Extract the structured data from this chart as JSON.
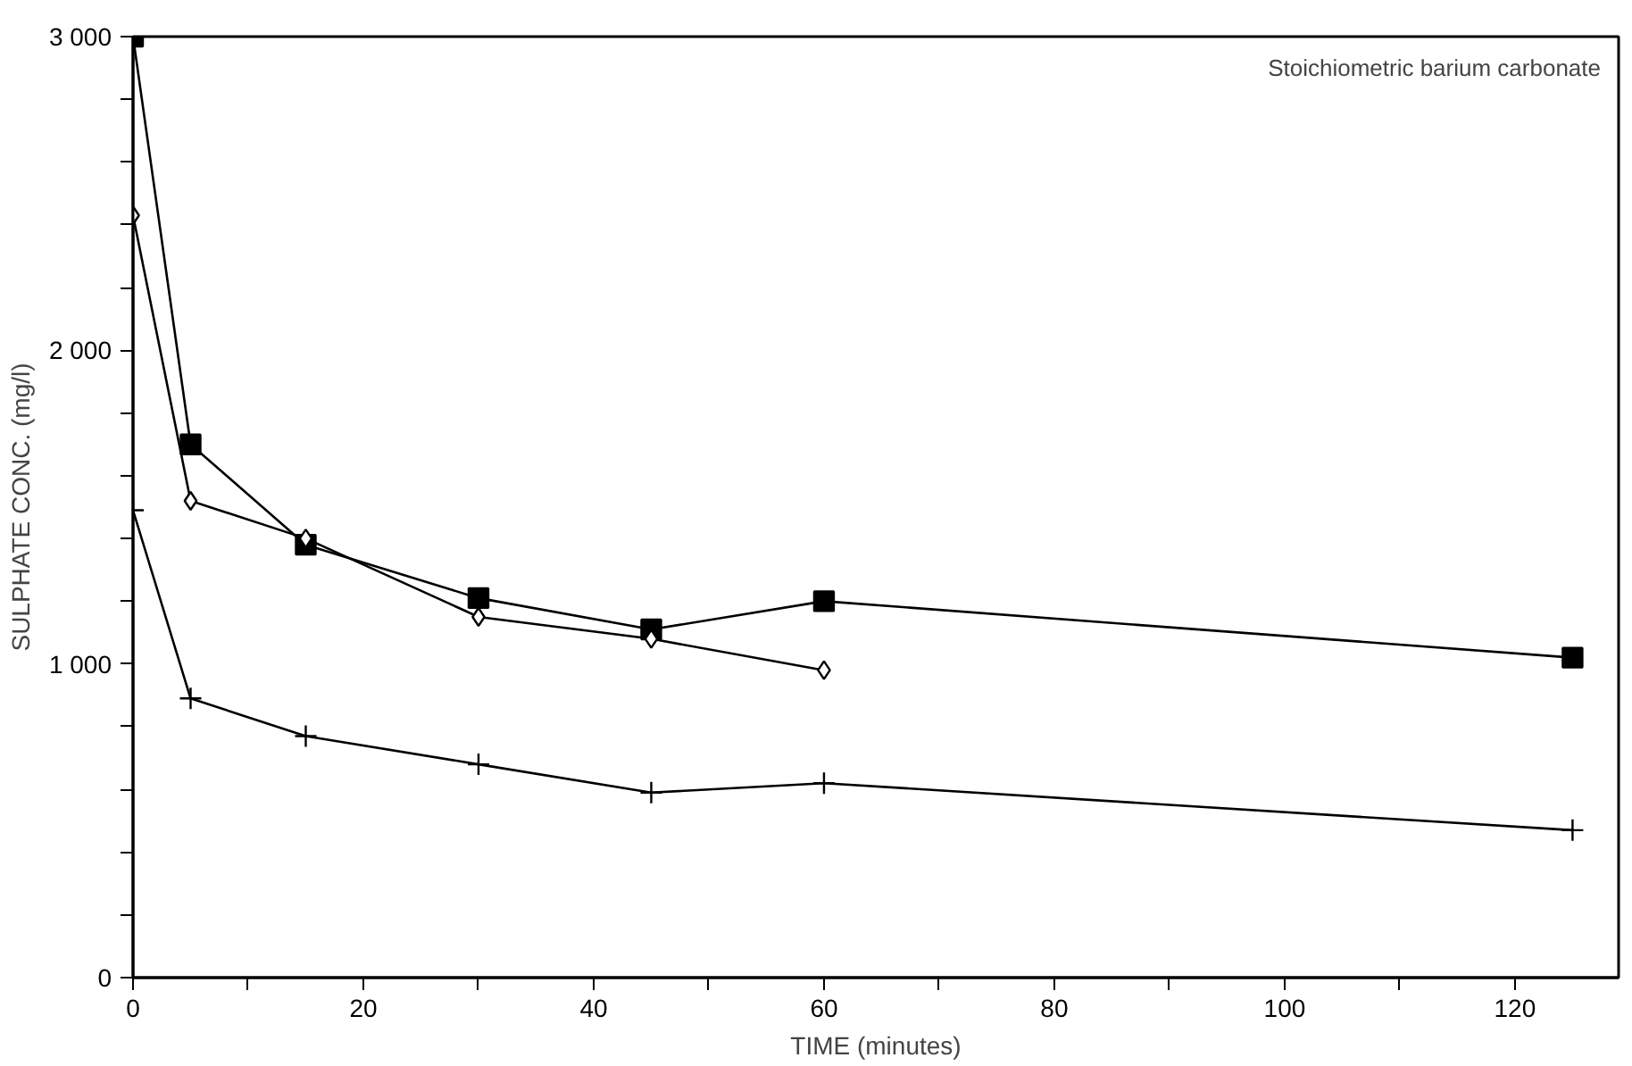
{
  "chart_data": {
    "type": "line",
    "annotations": [
      "Stoichiometric barium carbonate"
    ],
    "xlabel": "TIME (minutes)",
    "ylabel": "SULPHATE CONC. (mg/l)",
    "x": [
      0,
      5,
      15,
      30,
      45,
      60,
      125
    ],
    "series": [
      {
        "color": "#000000",
        "marker": "square",
        "values": [
          3000,
          1700,
          1380,
          1210,
          1110,
          1200,
          1020
        ]
      },
      {
        "color": "#000000",
        "marker": "diamond",
        "values": [
          2430,
          1520,
          1400,
          1150,
          1080,
          980,
          null
        ]
      },
      {
        "color": "#000000",
        "marker": "cross",
        "values": [
          1490,
          890,
          770,
          680,
          590,
          620,
          470
        ]
      }
    ],
    "xlim": [
      0,
      129
    ],
    "ylim": [
      0,
      3000
    ],
    "xticks": [
      0,
      {
        "value": 10,
        "label": null
      },
      20,
      {
        "value": 30,
        "label": null
      },
      40,
      {
        "value": 50,
        "label": null
      },
      60,
      {
        "value": 70,
        "label": null
      },
      80,
      {
        "value": 90,
        "label": null
      },
      100,
      {
        "value": 110,
        "label": null
      },
      120
    ],
    "yticks": [
      0,
      {
        "value": 200,
        "label": null
      },
      {
        "value": 400,
        "label": null
      },
      {
        "value": 600,
        "label": null
      },
      {
        "value": 800,
        "label": null
      },
      {
        "value": 1000,
        "label": "1 000"
      },
      {
        "value": 1200,
        "label": null
      },
      {
        "value": 1400,
        "label": null
      },
      {
        "value": 1600,
        "label": null
      },
      {
        "value": 1800,
        "label": null
      },
      {
        "value": 2000,
        "label": "2 000"
      },
      {
        "value": 2200,
        "label": null
      },
      {
        "value": 2400,
        "label": null
      },
      {
        "value": 2600,
        "label": null
      },
      {
        "value": 2800,
        "label": null
      },
      {
        "value": 3000,
        "label": "3 000"
      }
    ],
    "grid": false,
    "line_style": "solid"
  }
}
